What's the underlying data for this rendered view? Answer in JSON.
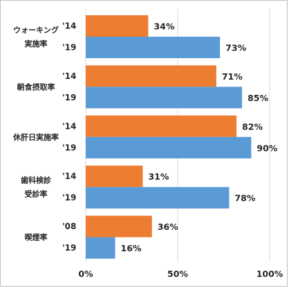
{
  "chart_data": {
    "type": "bar",
    "orientation": "horizontal",
    "xlim": [
      0,
      100
    ],
    "x_tick_labels": [
      "0%",
      "50%",
      "100%"
    ],
    "grid": true,
    "colors": {
      "older": "#ED7D31",
      "newer": "#5B9BD5"
    },
    "groups": [
      {
        "label_lines": [
          "ウォーキング",
          "実施率"
        ],
        "bars": [
          {
            "year": "'14",
            "value": 34,
            "label": "34%"
          },
          {
            "year": "'19",
            "value": 73,
            "label": "73%"
          }
        ]
      },
      {
        "label_lines": [
          "朝食摂取率"
        ],
        "bars": [
          {
            "year": "'14",
            "value": 71,
            "label": "71%"
          },
          {
            "year": "'19",
            "value": 85,
            "label": "85%"
          }
        ]
      },
      {
        "label_lines": [
          "休肝日実施率"
        ],
        "bars": [
          {
            "year": "'14",
            "value": 82,
            "label": "82%"
          },
          {
            "year": "'19",
            "value": 90,
            "label": "90%"
          }
        ]
      },
      {
        "label_lines": [
          "歯科検診",
          "受診率"
        ],
        "bars": [
          {
            "year": "'14",
            "value": 31,
            "label": "31%"
          },
          {
            "year": "'19",
            "value": 78,
            "label": "78%"
          }
        ]
      },
      {
        "label_lines": [
          "喫煙率"
        ],
        "bars": [
          {
            "year": "'08",
            "value": 36,
            "label": "36%"
          },
          {
            "year": "'19",
            "value": 16,
            "label": "16%"
          }
        ]
      }
    ]
  }
}
